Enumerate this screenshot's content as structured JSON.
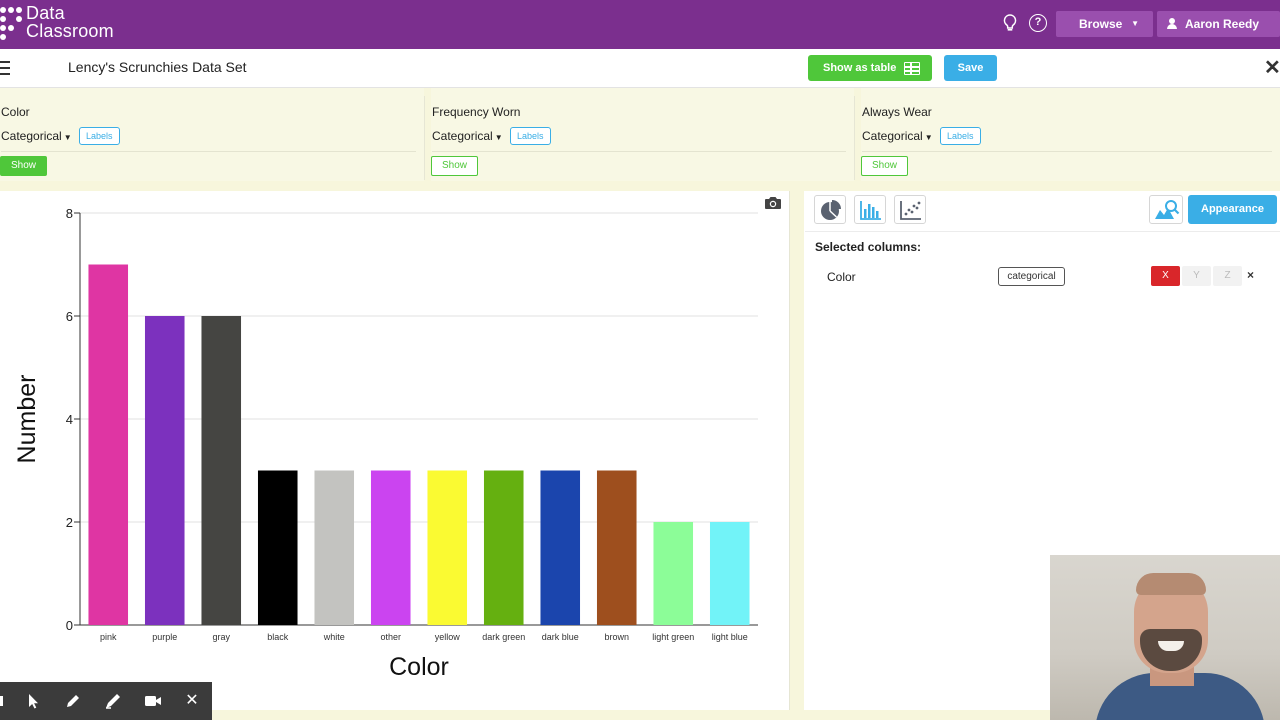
{
  "app": {
    "logo_line1": "Data",
    "logo_line2": "Classroom",
    "browse_label": "Browse",
    "user_name": "Aaron Reedy",
    "brand_color": "#7b2f8e"
  },
  "titlebar": {
    "title": "Lency's Scrunchies Data Set",
    "show_table_label": "Show as table",
    "save_label": "Save"
  },
  "columns": [
    {
      "name": "Color",
      "type": "Categorical",
      "labels_label": "Labels",
      "show_label": "Show",
      "shown": true
    },
    {
      "name": "Frequency Worn",
      "type": "Categorical",
      "labels_label": "Labels",
      "show_label": "Show",
      "shown": false
    },
    {
      "name": "Always Wear",
      "type": "Categorical",
      "labels_label": "Labels",
      "show_label": "Show",
      "shown": false
    }
  ],
  "right_panel": {
    "appearance_label": "Appearance",
    "selected_columns_label": "Selected columns:",
    "selected": [
      {
        "name": "Color",
        "type_badge": "categorical",
        "x_label": "X",
        "y_label": "Y",
        "z_label": "Z",
        "remove": "×"
      }
    ]
  },
  "chart_data": {
    "type": "bar",
    "categories": [
      "pink",
      "purple",
      "gray",
      "black",
      "white",
      "other",
      "yellow",
      "dark green",
      "dark blue",
      "brown",
      "light green",
      "light blue"
    ],
    "values": [
      7,
      6,
      6,
      3,
      3,
      3,
      3,
      3,
      3,
      3,
      2,
      2
    ],
    "colors": [
      "#df35a3",
      "#7c31be",
      "#454542",
      "#000000",
      "#c3c3c0",
      "#cb44f0",
      "#fafa32",
      "#65b010",
      "#1b45ad",
      "#9e4f1e",
      "#8cfd98",
      "#72f3f8"
    ],
    "xlabel": "Color",
    "ylabel": "Number",
    "ylim": [
      0,
      8
    ],
    "yticks": [
      0,
      2,
      4,
      6,
      8
    ],
    "grid": true
  }
}
